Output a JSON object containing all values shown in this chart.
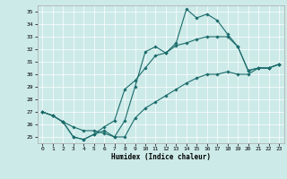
{
  "xlabel": "Humidex (Indice chaleur)",
  "xlim": [
    -0.5,
    23.5
  ],
  "ylim": [
    24.5,
    35.5
  ],
  "yticks": [
    25,
    26,
    27,
    28,
    29,
    30,
    31,
    32,
    33,
    34,
    35
  ],
  "xticks": [
    0,
    1,
    2,
    3,
    4,
    5,
    6,
    7,
    8,
    9,
    10,
    11,
    12,
    13,
    14,
    15,
    16,
    17,
    18,
    19,
    20,
    21,
    22,
    23
  ],
  "bg_color": "#cceae8",
  "line_color": "#1a6b6b",
  "grid_color": "#ffffff",
  "line1_x": [
    0,
    1,
    2,
    3,
    4,
    5,
    6,
    7,
    8,
    9,
    10,
    11,
    12,
    13,
    14,
    15,
    16,
    17,
    18,
    19,
    20,
    21,
    22,
    23
  ],
  "line1_y": [
    27.0,
    26.7,
    26.2,
    25.8,
    25.5,
    25.5,
    25.3,
    25.0,
    26.3,
    29.0,
    31.8,
    32.2,
    31.7,
    32.5,
    35.2,
    34.5,
    34.8,
    34.3,
    33.2,
    32.2,
    30.3,
    30.5,
    30.5,
    30.8
  ],
  "line2_x": [
    0,
    1,
    2,
    3,
    4,
    5,
    6,
    7,
    8,
    9,
    10,
    11,
    12,
    13,
    14,
    15,
    16,
    17,
    18,
    19,
    20,
    21,
    22,
    23
  ],
  "line2_y": [
    27.0,
    26.7,
    26.2,
    25.0,
    24.8,
    25.2,
    25.8,
    26.3,
    28.8,
    29.5,
    30.5,
    31.5,
    31.7,
    32.3,
    32.5,
    32.8,
    33.0,
    33.0,
    33.0,
    32.2,
    30.3,
    30.5,
    30.5,
    30.8
  ],
  "line3_x": [
    0,
    1,
    2,
    3,
    4,
    5,
    6,
    7,
    8,
    9,
    10,
    11,
    12,
    13,
    14,
    15,
    16,
    17,
    18,
    19,
    20,
    21,
    22,
    23
  ],
  "line3_y": [
    27.0,
    26.7,
    26.2,
    25.0,
    24.8,
    25.2,
    25.5,
    25.0,
    25.0,
    26.5,
    27.3,
    27.8,
    28.3,
    28.8,
    29.3,
    29.7,
    30.0,
    30.0,
    30.2,
    30.0,
    30.0,
    30.5,
    30.5,
    30.8
  ]
}
